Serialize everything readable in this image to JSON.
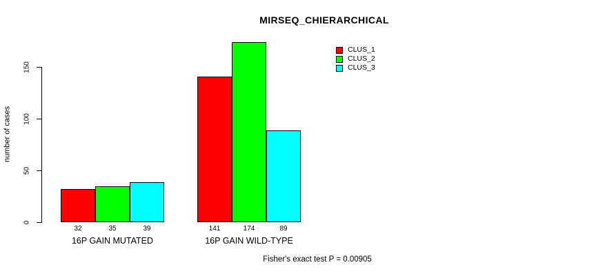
{
  "chart_data": {
    "type": "bar",
    "title": "MIRSEQ_CHIERARCHICAL",
    "ylabel": "number of cases",
    "xlabel": "",
    "categories": [
      "16P GAIN MUTATED",
      "16P GAIN WILD-TYPE"
    ],
    "series": [
      {
        "name": "CLUS_1",
        "color": "#ff0000",
        "values": [
          32,
          141
        ]
      },
      {
        "name": "CLUS_2",
        "color": "#00ff00",
        "values": [
          35,
          174
        ]
      },
      {
        "name": "CLUS_3",
        "color": "#00ffff",
        "values": [
          39,
          89
        ]
      }
    ],
    "ylim": [
      0,
      174
    ],
    "yticks": [
      0,
      50,
      100,
      150
    ],
    "grid": false,
    "show_value_labels": true,
    "legend_position": "top-right",
    "annotation": "Fisher's exact test P = 0.00905"
  },
  "colors": {
    "background": "#ffffff",
    "axis": "#000000",
    "text": "#000000"
  }
}
